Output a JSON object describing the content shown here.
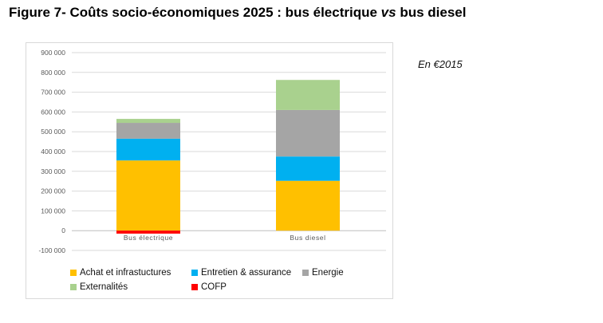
{
  "figure": {
    "title_prefix": "Figure 7- Coûts socio-économiques 2025 : bus électrique ",
    "title_em": "vs",
    "title_suffix": " bus diesel",
    "note": "En €2015"
  },
  "chart_data": {
    "type": "bar",
    "stacked": true,
    "categories": [
      "Bus électrique",
      "Bus diesel"
    ],
    "series": [
      {
        "name": "Achat et infrastuctures",
        "color": "#FFC000",
        "values": [
          355000,
          252000
        ]
      },
      {
        "name": "Entretien & assurance",
        "color": "#00B0F0",
        "values": [
          110000,
          123000
        ]
      },
      {
        "name": "Energie",
        "color": "#A5A5A5",
        "values": [
          80000,
          235000
        ]
      },
      {
        "name": "Externalités",
        "color": "#A9D18E",
        "values": [
          20000,
          152000
        ]
      },
      {
        "name": "COFP",
        "color": "#FF0000",
        "values": [
          -15000,
          0
        ]
      }
    ],
    "yticks": [
      "900 000",
      "800 000",
      "700 000",
      "600 000",
      "500 000",
      "400 000",
      "300 000",
      "200 000",
      "100 000",
      "0",
      "-100 000"
    ],
    "ylim": [
      -100000,
      900000
    ],
    "grid": true,
    "legend": "bottom"
  }
}
